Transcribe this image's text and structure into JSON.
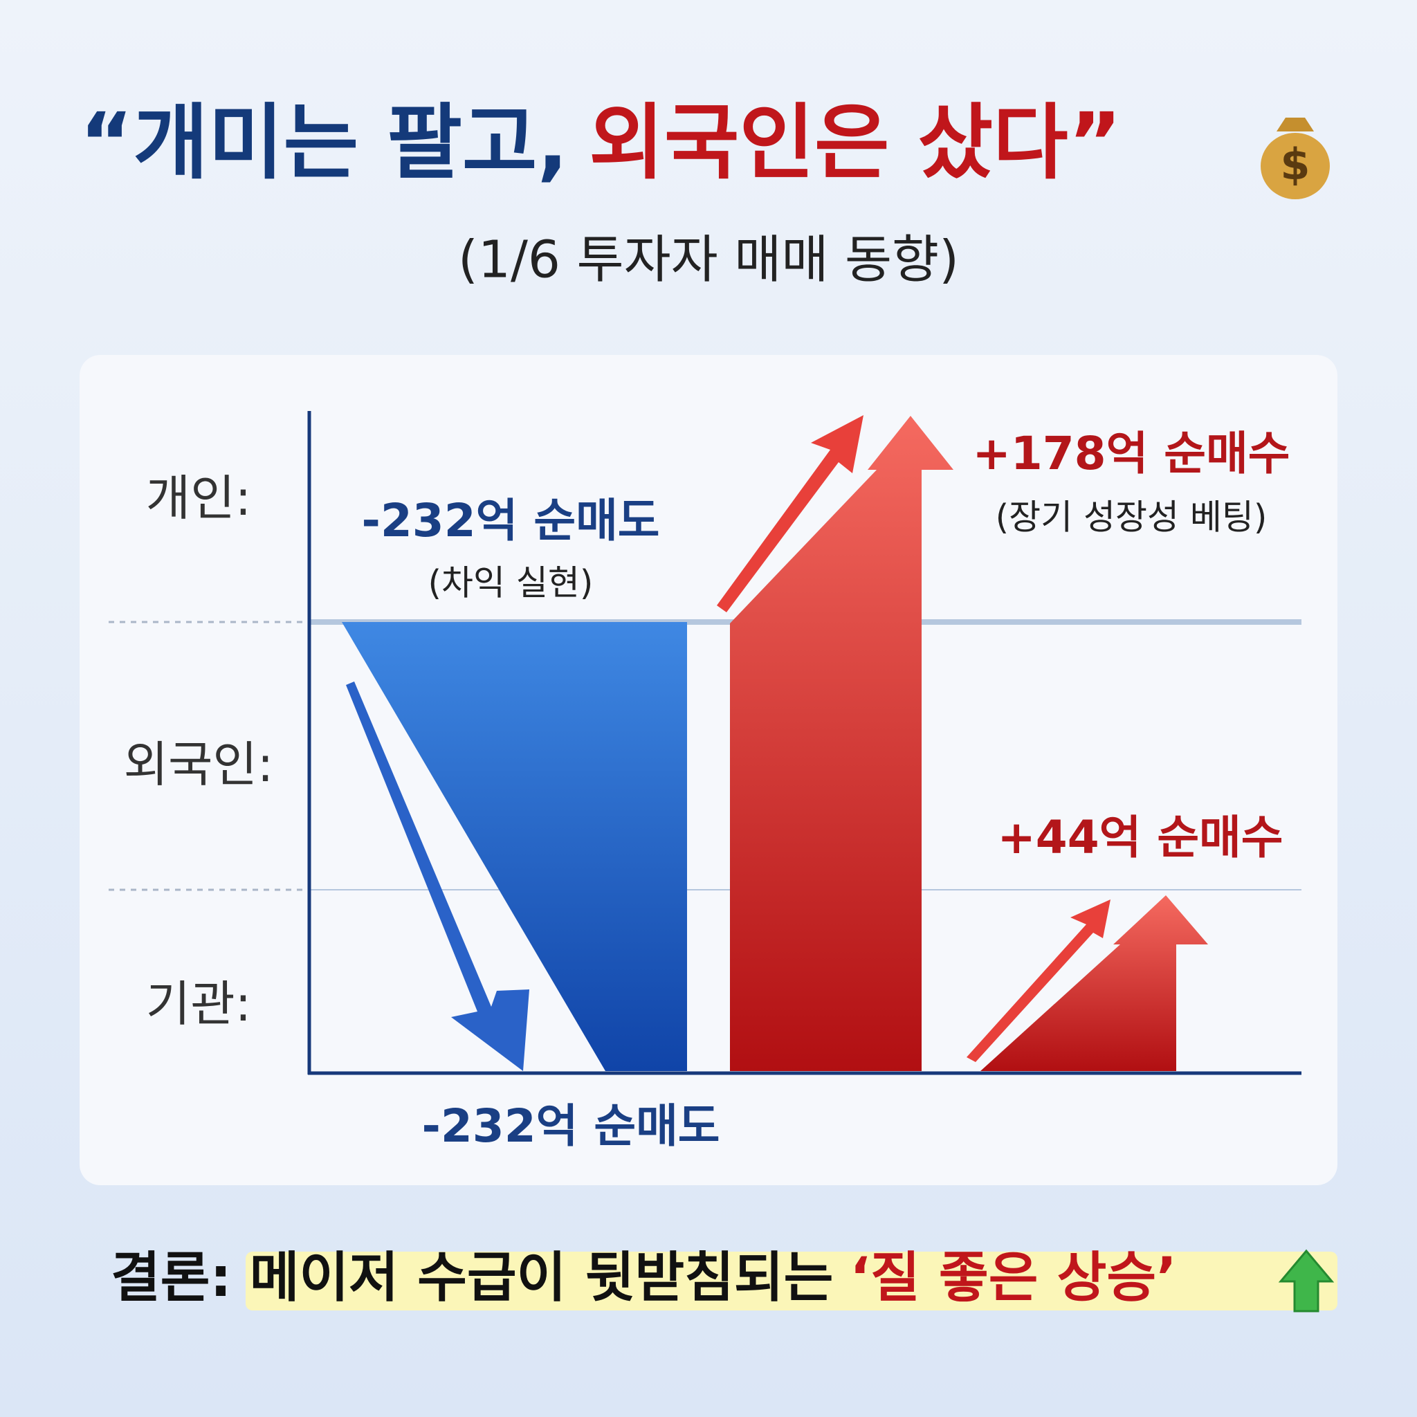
{
  "header": {
    "title": [
      "“개미는 팔고,",
      "외국인은 샀다”"
    ],
    "subtitle": "(1/6 투자자 매매 동향)"
  },
  "rows": [
    "개인:",
    "외국인:",
    "기관:"
  ],
  "labels": {
    "individual": {
      "amount": "-232억 순매도",
      "reason": "(차익 실현)"
    },
    "foreign": {
      "amount": "+178억 순매수",
      "reason": "(장기 성장성 베팅)"
    },
    "institution": {
      "amount": "+44억 순매수"
    },
    "bottom": "-232억 순매도"
  },
  "conclusion": {
    "label": "결론:",
    "text": "메이저 수급이 뒷받침되는",
    "highlight": "‘질 좋은 상승’"
  }
}
